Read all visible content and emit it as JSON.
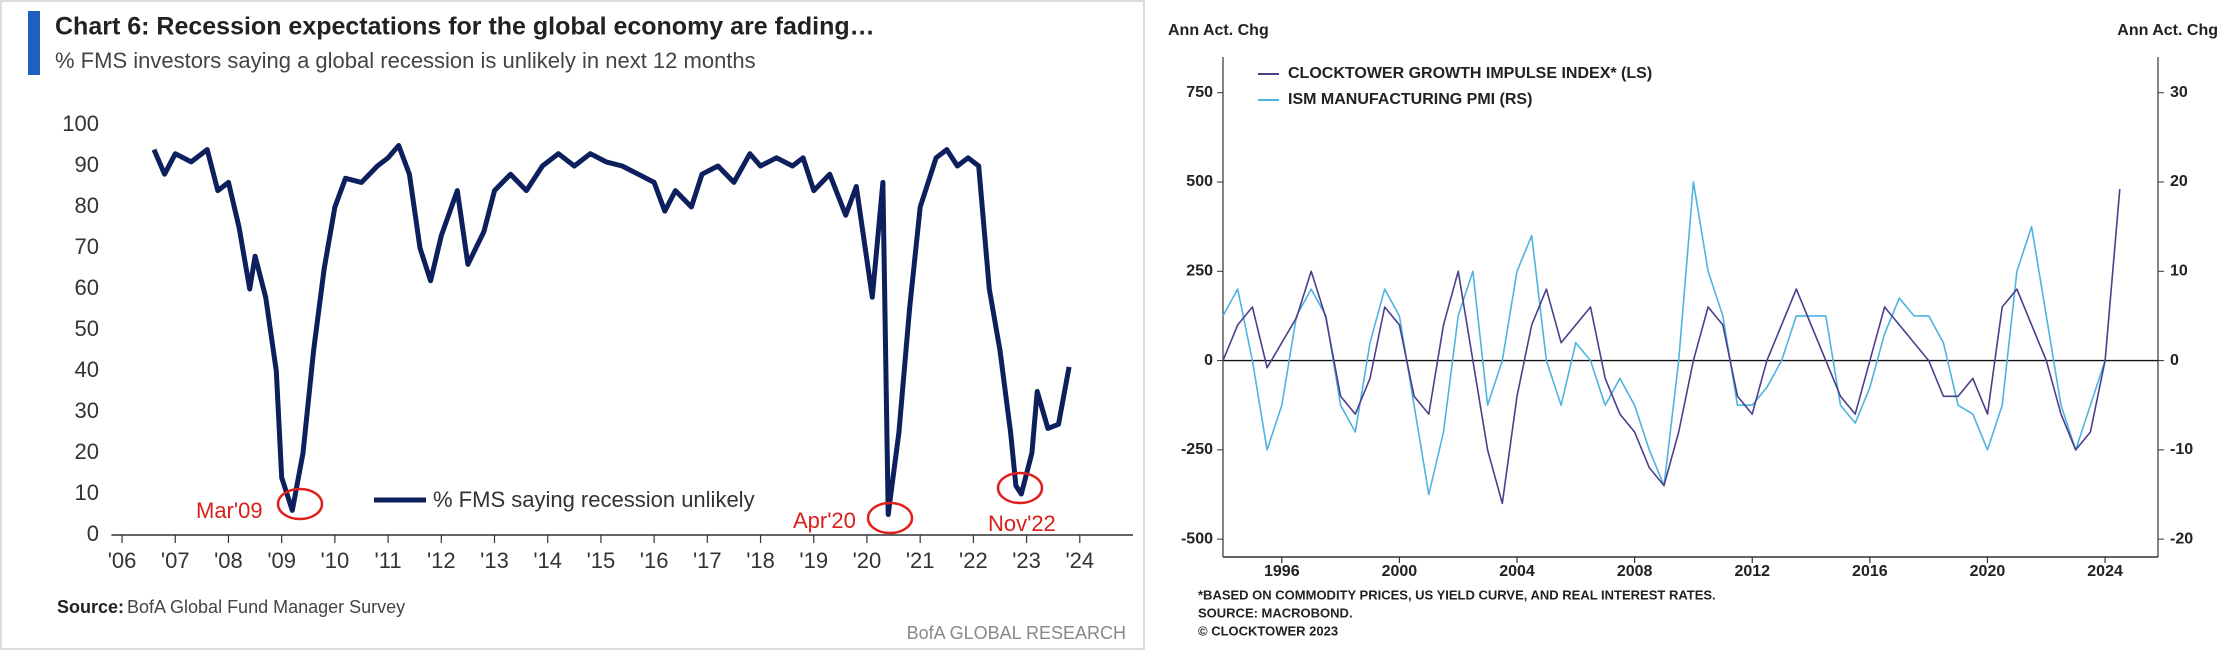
{
  "chart_data": [
    {
      "type": "line",
      "title": "Chart 6: Recession expectations for the global economy are fading…",
      "subtitle": "% FMS investors saying a global recession is unlikely in next 12 months",
      "x": [
        2006.6,
        2006.8,
        2007.0,
        2007.3,
        2007.6,
        2007.8,
        2008.0,
        2008.2,
        2008.4,
        2008.5,
        2008.7,
        2008.9,
        2009.0,
        2009.2,
        2009.4,
        2009.6,
        2009.8,
        2010.0,
        2010.2,
        2010.5,
        2010.8,
        2011.0,
        2011.2,
        2011.4,
        2011.6,
        2011.8,
        2012.0,
        2012.3,
        2012.5,
        2012.8,
        2013.0,
        2013.3,
        2013.6,
        2013.9,
        2014.2,
        2014.5,
        2014.8,
        2015.1,
        2015.4,
        2015.7,
        2016.0,
        2016.2,
        2016.4,
        2016.7,
        2016.9,
        2017.2,
        2017.5,
        2017.8,
        2018.0,
        2018.3,
        2018.6,
        2018.8,
        2019.0,
        2019.3,
        2019.6,
        2019.8,
        2020.1,
        2020.3,
        2020.4,
        2020.6,
        2020.8,
        2021.0,
        2021.3,
        2021.5,
        2021.7,
        2021.9,
        2022.1,
        2022.3,
        2022.5,
        2022.7,
        2022.8,
        2022.9,
        2023.1,
        2023.2,
        2023.4,
        2023.6,
        2023.8
      ],
      "series": [
        {
          "name": "% FMS saying recession unlikely",
          "color": "#0d1f5c",
          "values": [
            94,
            88,
            93,
            91,
            94,
            84,
            86,
            75,
            60,
            68,
            58,
            40,
            14,
            6,
            20,
            45,
            65,
            80,
            87,
            86,
            90,
            92,
            95,
            88,
            70,
            62,
            73,
            84,
            66,
            74,
            84,
            88,
            84,
            90,
            93,
            90,
            93,
            91,
            90,
            88,
            86,
            79,
            84,
            80,
            88,
            90,
            86,
            93,
            90,
            92,
            90,
            92,
            84,
            88,
            78,
            85,
            58,
            86,
            5,
            25,
            55,
            80,
            92,
            94,
            90,
            92,
            90,
            60,
            45,
            25,
            12,
            10,
            20,
            35,
            26,
            27,
            41
          ]
        }
      ],
      "xlim": [
        2005.8,
        2025.0
      ],
      "xticks": [
        {
          "value": 2006,
          "label": "'06"
        },
        {
          "value": 2007,
          "label": "'07"
        },
        {
          "value": 2008,
          "label": "'08"
        },
        {
          "value": 2009,
          "label": "'09"
        },
        {
          "value": 2010,
          "label": "'10"
        },
        {
          "value": 2011,
          "label": "'11"
        },
        {
          "value": 2012,
          "label": "'12"
        },
        {
          "value": 2013,
          "label": "'13"
        },
        {
          "value": 2014,
          "label": "'14"
        },
        {
          "value": 2015,
          "label": "'15"
        },
        {
          "value": 2016,
          "label": "'16"
        },
        {
          "value": 2017,
          "label": "'17"
        },
        {
          "value": 2018,
          "label": "'18"
        },
        {
          "value": 2019,
          "label": "'19"
        },
        {
          "value": 2020,
          "label": "'20"
        },
        {
          "value": 2021,
          "label": "'21"
        },
        {
          "value": 2022,
          "label": "'22"
        },
        {
          "value": 2023,
          "label": "'23"
        },
        {
          "value": 2024,
          "label": "'24"
        }
      ],
      "ylim": [
        0,
        100
      ],
      "yticks": [
        0,
        10,
        20,
        30,
        40,
        50,
        60,
        70,
        80,
        90,
        100
      ],
      "annotations": [
        "Mar'09",
        "Apr'20",
        "Nov'22"
      ],
      "source_label": "Source:",
      "source": "BofA Global Fund Manager Survey",
      "credit": "BofA GLOBAL RESEARCH"
    },
    {
      "type": "line",
      "ylabel": "Ann Act. Chg",
      "y2label": "Ann Act. Chg",
      "x": [
        1994.0,
        1994.5,
        1995.0,
        1995.5,
        1996.0,
        1996.5,
        1997.0,
        1997.5,
        1998.0,
        1998.5,
        1999.0,
        1999.5,
        2000.0,
        2000.5,
        2001.0,
        2001.5,
        2002.0,
        2002.5,
        2003.0,
        2003.5,
        2004.0,
        2004.5,
        2005.0,
        2005.5,
        2006.0,
        2006.5,
        2007.0,
        2007.5,
        2008.0,
        2008.5,
        2009.0,
        2009.5,
        2010.0,
        2010.5,
        2011.0,
        2011.5,
        2012.0,
        2012.5,
        2013.0,
        2013.5,
        2014.0,
        2014.5,
        2015.0,
        2015.5,
        2016.0,
        2016.5,
        2017.0,
        2017.5,
        2018.0,
        2018.5,
        2019.0,
        2019.5,
        2020.0,
        2020.5,
        2021.0,
        2021.5,
        2022.0,
        2022.5,
        2023.0,
        2023.5,
        2024.0,
        2024.5
      ],
      "series": [
        {
          "name": "CLOCKTOWER GROWTH IMPULSE INDEX* (LS)",
          "color": "#4b3f8c",
          "values": [
            0,
            100,
            150,
            -20,
            50,
            120,
            250,
            120,
            -100,
            -150,
            -50,
            150,
            100,
            -100,
            -150,
            100,
            250,
            0,
            -250,
            -400,
            -100,
            100,
            200,
            50,
            100,
            150,
            -50,
            -150,
            -200,
            -300,
            -350,
            -200,
            0,
            150,
            100,
            -100,
            -150,
            0,
            100,
            200,
            100,
            0,
            -100,
            -150,
            0,
            150,
            100,
            50,
            0,
            -100,
            -100,
            -50,
            -150,
            150,
            200,
            100,
            0,
            -150,
            -250,
            -200,
            0,
            480
          ]
        },
        {
          "name": "ISM MANUFACTURING PMI (RS)",
          "color": "#4fb3e0",
          "axis": "y2",
          "values": [
            5,
            8,
            0,
            -10,
            -5,
            5,
            8,
            5,
            -5,
            -8,
            2,
            8,
            5,
            -5,
            -15,
            -8,
            5,
            10,
            -5,
            0,
            10,
            14,
            0,
            -5,
            2,
            0,
            -5,
            -2,
            -5,
            -10,
            -14,
            0,
            20,
            10,
            5,
            -5,
            -5,
            -3,
            0,
            5,
            5,
            5,
            -5,
            -7,
            -3,
            3,
            7,
            5,
            5,
            2,
            -5,
            -6,
            -10,
            -5,
            10,
            15,
            5,
            -5,
            -10,
            -5,
            0,
            null
          ]
        }
      ],
      "xlim": [
        1994,
        2025.8
      ],
      "xticks": [
        1996,
        2000,
        2004,
        2008,
        2012,
        2016,
        2020,
        2024
      ],
      "ylim": [
        -550,
        850
      ],
      "yticks": [
        -500,
        -250,
        0,
        250,
        500,
        750
      ],
      "y2lim": [
        -22,
        34
      ],
      "y2ticks": [
        -20,
        -10,
        0,
        10,
        20,
        30
      ],
      "footnotes": [
        "*BASED ON COMMODITY PRICES, US YIELD CURVE, AND REAL INTEREST RATES.",
        "SOURCE: MACROBOND.",
        "© CLOCKTOWER 2023"
      ]
    }
  ]
}
